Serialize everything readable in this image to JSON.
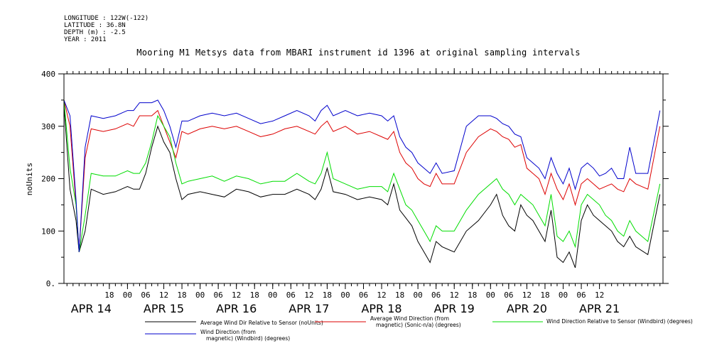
{
  "header": {
    "longitude": "LONGITUDE : 122W(-122)",
    "latitude": "LATITUDE : 36.8N",
    "depth": "DEPTH (m) : -2.5",
    "year": "YEAR : 2011"
  },
  "chart_data": {
    "type": "line",
    "title": "Mooring M1 Metsys data from MBARI instrument id 1396 at original sampling intervals",
    "ylabel": "noUnits",
    "xlabel": "",
    "ylim": [
      0,
      400
    ],
    "y_ticks": [
      0,
      100,
      200,
      300,
      400
    ],
    "xlim_hours": [
      -9,
      189
    ],
    "x_ticks": [
      {
        "h": 6,
        "label": "18"
      },
      {
        "h": 12,
        "label": "00"
      },
      {
        "h": 18,
        "label": "06"
      },
      {
        "h": 24,
        "label": "12"
      },
      {
        "h": 30,
        "label": "18"
      },
      {
        "h": 36,
        "label": "00"
      },
      {
        "h": 42,
        "label": "06"
      },
      {
        "h": 48,
        "label": "12"
      },
      {
        "h": 54,
        "label": "18"
      },
      {
        "h": 60,
        "label": "00"
      },
      {
        "h": 66,
        "label": "06"
      },
      {
        "h": 72,
        "label": "12"
      },
      {
        "h": 78,
        "label": "18"
      },
      {
        "h": 84,
        "label": "00"
      },
      {
        "h": 90,
        "label": "06"
      },
      {
        "h": 96,
        "label": "12"
      },
      {
        "h": 102,
        "label": "18"
      },
      {
        "h": 108,
        "label": "00"
      },
      {
        "h": 114,
        "label": "06"
      },
      {
        "h": 120,
        "label": "12"
      },
      {
        "h": 126,
        "label": "18"
      },
      {
        "h": 132,
        "label": "00"
      },
      {
        "h": 138,
        "label": "06"
      },
      {
        "h": 144,
        "label": "12"
      },
      {
        "h": 150,
        "label": "18"
      },
      {
        "h": 156,
        "label": "00"
      },
      {
        "h": 162,
        "label": "06"
      },
      {
        "h": 168,
        "label": "12"
      }
    ],
    "date_labels": [
      {
        "h": 0,
        "label": "APR 14"
      },
      {
        "h": 24,
        "label": "APR 15"
      },
      {
        "h": 48,
        "label": "APR 16"
      },
      {
        "h": 72,
        "label": "APR 17"
      },
      {
        "h": 96,
        "label": "APR 18"
      },
      {
        "h": 120,
        "label": "APR 19"
      },
      {
        "h": 144,
        "label": "APR 20"
      },
      {
        "h": 168,
        "label": "APR 21"
      }
    ],
    "grid": false,
    "series": [
      {
        "name": "Average Wind Dir Relative to Sensor (noUnits)",
        "color": "#000000",
        "x": [
          -9,
          -7,
          -5,
          -4,
          -2,
          0,
          4,
          8,
          12,
          14,
          16,
          18,
          20,
          22,
          24,
          26,
          28,
          30,
          32,
          36,
          40,
          44,
          48,
          52,
          56,
          60,
          64,
          68,
          72,
          74,
          76,
          78,
          80,
          84,
          88,
          92,
          96,
          98,
          100,
          102,
          104,
          106,
          108,
          110,
          112,
          114,
          116,
          120,
          124,
          128,
          132,
          134,
          136,
          138,
          140,
          142,
          144,
          146,
          148,
          150,
          152,
          154,
          156,
          158,
          160,
          162,
          164,
          166,
          168,
          170,
          172,
          174,
          176,
          178,
          180,
          184,
          188
        ],
        "y": [
          340,
          180,
          120,
          60,
          100,
          180,
          170,
          175,
          185,
          180,
          180,
          210,
          260,
          300,
          270,
          250,
          200,
          160,
          170,
          175,
          170,
          165,
          180,
          175,
          165,
          170,
          170,
          180,
          170,
          160,
          180,
          220,
          175,
          170,
          160,
          165,
          160,
          150,
          190,
          140,
          125,
          110,
          80,
          60,
          40,
          80,
          70,
          60,
          100,
          120,
          150,
          170,
          130,
          110,
          100,
          150,
          130,
          120,
          100,
          80,
          140,
          50,
          40,
          60,
          30,
          120,
          150,
          130,
          120,
          110,
          100,
          80,
          70,
          90,
          70,
          55,
          170
        ]
      },
      {
        "name": "Average Wind Direction (from, magnetic) (Sonic-n/a) (degrees)",
        "color": "#dd0000",
        "x": [
          -9,
          -7,
          -5,
          -4,
          -2,
          0,
          4,
          8,
          12,
          14,
          16,
          18,
          20,
          22,
          24,
          26,
          28,
          30,
          32,
          36,
          40,
          44,
          48,
          52,
          56,
          60,
          64,
          68,
          72,
          74,
          76,
          78,
          80,
          84,
          88,
          92,
          96,
          98,
          100,
          102,
          104,
          106,
          108,
          110,
          112,
          114,
          116,
          120,
          124,
          128,
          132,
          134,
          136,
          138,
          140,
          142,
          144,
          146,
          148,
          150,
          152,
          154,
          156,
          158,
          160,
          162,
          164,
          166,
          168,
          170,
          172,
          174,
          176,
          178,
          180,
          184,
          188
        ],
        "y": [
          350,
          300,
          150,
          60,
          240,
          295,
          290,
          295,
          305,
          300,
          320,
          320,
          320,
          330,
          300,
          270,
          240,
          290,
          285,
          295,
          300,
          295,
          300,
          290,
          280,
          285,
          295,
          300,
          290,
          285,
          300,
          310,
          290,
          300,
          285,
          290,
          280,
          275,
          290,
          250,
          230,
          220,
          200,
          190,
          185,
          210,
          190,
          190,
          250,
          280,
          295,
          290,
          280,
          275,
          260,
          265,
          220,
          210,
          200,
          170,
          210,
          180,
          160,
          190,
          150,
          190,
          200,
          190,
          180,
          185,
          190,
          180,
          175,
          200,
          190,
          180,
          300
        ]
      },
      {
        "name": "Wind Direction Relative to Sensor (Windbird) (degrees)",
        "color": "#00dd00",
        "x": [
          -9,
          -7,
          -5,
          -4,
          -2,
          0,
          4,
          8,
          12,
          14,
          16,
          18,
          20,
          22,
          24,
          26,
          28,
          30,
          32,
          36,
          40,
          44,
          48,
          52,
          56,
          60,
          64,
          68,
          72,
          74,
          76,
          78,
          80,
          84,
          88,
          92,
          96,
          98,
          100,
          102,
          104,
          106,
          108,
          110,
          112,
          114,
          116,
          120,
          124,
          128,
          132,
          134,
          136,
          138,
          140,
          142,
          144,
          146,
          148,
          150,
          152,
          154,
          156,
          158,
          160,
          162,
          164,
          166,
          168,
          170,
          172,
          174,
          176,
          178,
          180,
          184,
          188
        ],
        "y": [
          350,
          220,
          150,
          60,
          130,
          210,
          205,
          205,
          215,
          210,
          210,
          230,
          270,
          320,
          300,
          280,
          230,
          190,
          195,
          200,
          205,
          195,
          205,
          200,
          190,
          195,
          195,
          210,
          195,
          190,
          210,
          250,
          200,
          190,
          180,
          185,
          185,
          175,
          210,
          180,
          150,
          140,
          120,
          100,
          80,
          110,
          100,
          100,
          140,
          170,
          190,
          200,
          180,
          170,
          150,
          170,
          160,
          150,
          130,
          110,
          170,
          90,
          80,
          100,
          70,
          150,
          170,
          160,
          150,
          130,
          120,
          100,
          90,
          120,
          100,
          80,
          190
        ]
      },
      {
        "name": "Wind Direction (from, magnetic) (Windbird) (degrees)",
        "color": "#0000cc",
        "x": [
          -9,
          -7,
          -5,
          -4,
          -2,
          0,
          4,
          8,
          12,
          14,
          16,
          18,
          20,
          22,
          24,
          26,
          28,
          30,
          32,
          36,
          40,
          44,
          48,
          52,
          56,
          60,
          64,
          68,
          72,
          74,
          76,
          78,
          80,
          84,
          88,
          92,
          96,
          98,
          100,
          102,
          104,
          106,
          108,
          110,
          112,
          114,
          116,
          120,
          124,
          128,
          132,
          134,
          136,
          138,
          140,
          142,
          144,
          146,
          148,
          150,
          152,
          154,
          156,
          158,
          160,
          162,
          164,
          166,
          168,
          170,
          172,
          174,
          176,
          178,
          180,
          184,
          188
        ],
        "y": [
          350,
          320,
          160,
          60,
          260,
          320,
          315,
          320,
          330,
          330,
          345,
          345,
          345,
          350,
          330,
          300,
          260,
          310,
          310,
          320,
          325,
          320,
          325,
          315,
          305,
          310,
          320,
          330,
          320,
          310,
          330,
          340,
          320,
          330,
          320,
          325,
          320,
          310,
          320,
          280,
          260,
          250,
          230,
          220,
          210,
          230,
          210,
          215,
          300,
          320,
          320,
          315,
          305,
          300,
          285,
          280,
          240,
          230,
          220,
          200,
          240,
          210,
          190,
          220,
          180,
          220,
          230,
          220,
          205,
          210,
          220,
          200,
          200,
          260,
          210,
          210,
          330
        ]
      }
    ],
    "legend": [
      {
        "series": 0,
        "lines": [
          "Average Wind Dir Relative to Sensor (noUnits)"
        ]
      },
      {
        "series": 1,
        "lines": [
          "Average Wind Direction (from",
          "magnetic) (Sonic-n/a) (degrees)"
        ]
      },
      {
        "series": 2,
        "lines": [
          "Wind Direction Relative to Sensor (Windbird) (degrees)"
        ]
      },
      {
        "series": 3,
        "lines": [
          "Wind Direction (from",
          "magnetic) (Windbird) (degrees)"
        ]
      }
    ]
  }
}
